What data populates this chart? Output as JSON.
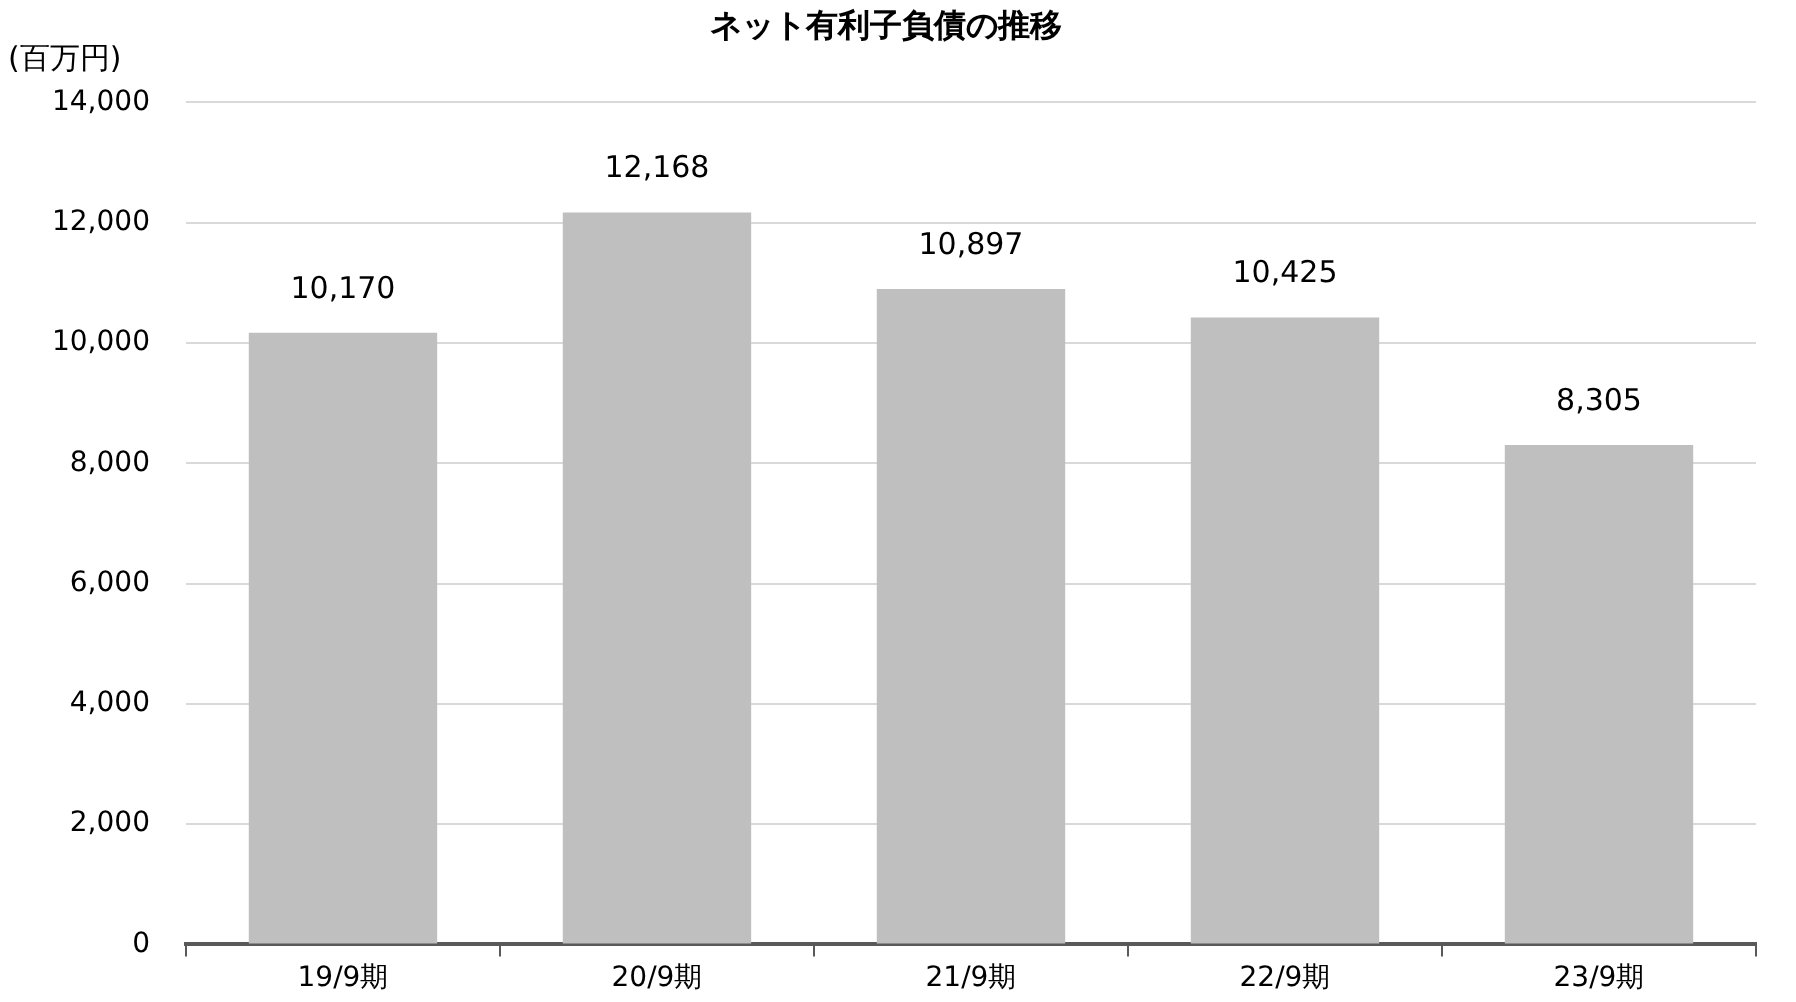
{
  "chart_data": {
    "type": "bar",
    "title": "ネット有利子負債の推移",
    "ylabel": "(百万円)",
    "categories": [
      "19/9期",
      "20/9期",
      "21/9期",
      "22/9期",
      "23/9期"
    ],
    "values": [
      10170,
      12168,
      10897,
      10425,
      8305
    ],
    "color": "#bfbfbf",
    "value_labels": [
      "10,170",
      "12,168",
      "10,897",
      "10,425",
      "8,305"
    ],
    "ylim": [
      0,
      14000
    ],
    "yticks": [
      0,
      {
        "value": 2000,
        "label": "2,000"
      },
      {
        "value": 4000,
        "label": "4,000"
      },
      {
        "value": 6000,
        "label": "6,000"
      },
      {
        "value": 8000,
        "label": "8,000"
      },
      {
        "value": 10000,
        "label": "10,000"
      },
      {
        "value": 12000,
        "label": "12,000"
      },
      {
        "value": 14000,
        "label": "14,000"
      }
    ],
    "grid": "y",
    "legend": false
  }
}
